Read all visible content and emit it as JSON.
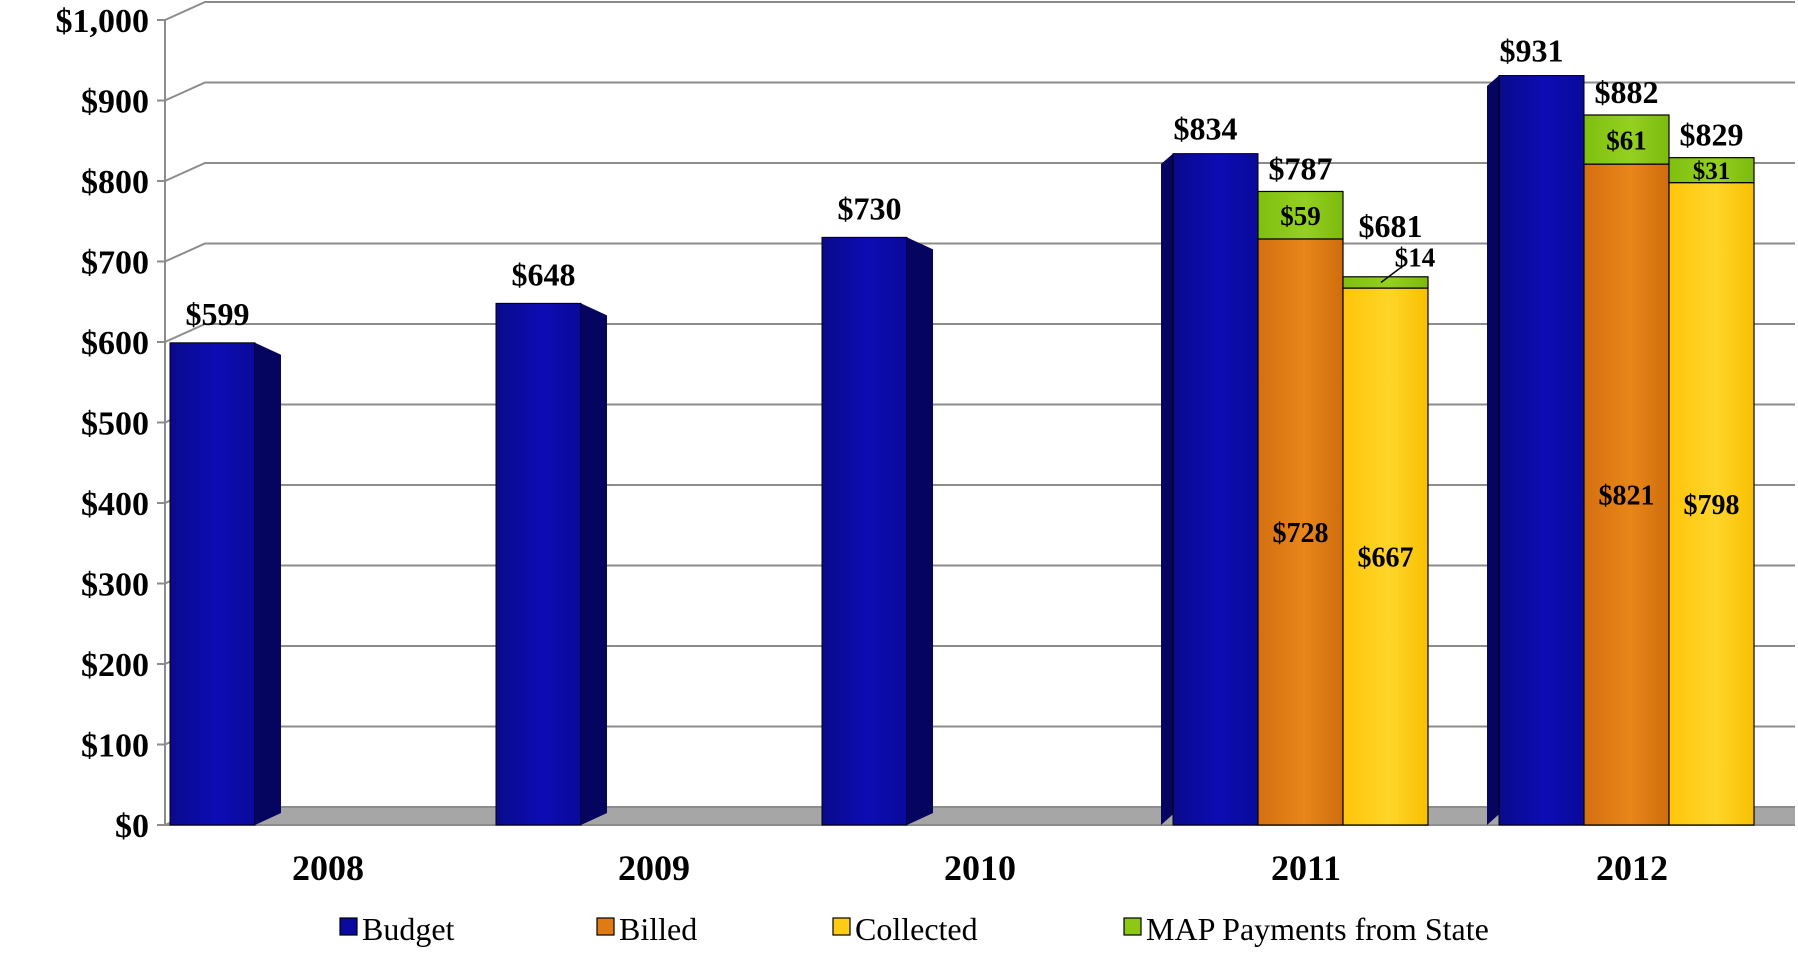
{
  "chart_data": {
    "type": "bar",
    "categories": [
      "2008",
      "2009",
      "2010",
      "2011",
      "2012"
    ],
    "ylim": [
      0,
      1000
    ],
    "yticks": [
      "$0",
      "$100",
      "$200",
      "$300",
      "$400",
      "$500",
      "$600",
      "$700",
      "$800",
      "$900",
      "$1,000"
    ],
    "grid": true,
    "legend_position": "bottom",
    "series": [
      {
        "name": "Budget",
        "color": "#0a0aa0",
        "values": [
          599,
          648,
          730,
          834,
          931
        ]
      },
      {
        "name": "Billed",
        "color": "#e07b14",
        "values": [
          null,
          null,
          null,
          728,
          821
        ]
      },
      {
        "name": "Collected",
        "color": "#ffcc14",
        "values": [
          null,
          null,
          null,
          667,
          798
        ]
      },
      {
        "name": "MAP Payments from State",
        "color": "#8cc814",
        "values": [
          null,
          null,
          null,
          [
            59,
            14
          ],
          [
            61,
            31
          ]
        ]
      }
    ],
    "stacks": {
      "2011": {
        "billed_total": 787,
        "collected_total": 681,
        "billed_map": 59,
        "collected_map": 14
      },
      "2012": {
        "billed_total": 882,
        "collected_total": 829,
        "billed_map": 61,
        "collected_map": 31
      }
    },
    "labels": {
      "budget": [
        "$599",
        "$648",
        "$730",
        "$834",
        "$931"
      ],
      "billed_total": {
        "2011": "$787",
        "2012": "$882"
      },
      "collected_total": {
        "2011": "$681",
        "2012": "$829"
      },
      "billed_base": {
        "2011": "$728",
        "2012": "$821"
      },
      "collected_base": {
        "2011": "$667",
        "2012": "$798"
      },
      "billed_map": {
        "2011": "$59",
        "2012": "$61"
      },
      "collected_map": {
        "2011": "$14",
        "2012": "$31"
      }
    },
    "legend": [
      "Budget",
      "Billed",
      "Collected",
      "MAP Payments from State"
    ]
  }
}
